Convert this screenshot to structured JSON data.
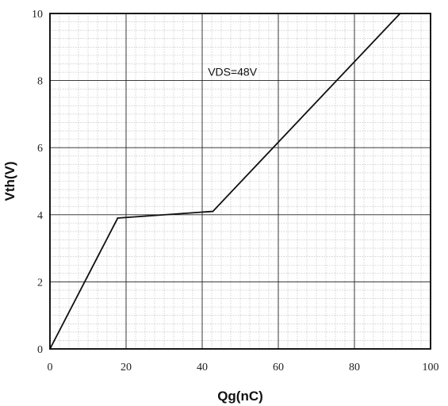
{
  "chart_data": {
    "type": "line",
    "xlabel": "Qg(nC)",
    "ylabel": "Vth(V)",
    "xlim": [
      0,
      100
    ],
    "ylim": [
      0,
      10
    ],
    "x_ticks": [
      0,
      20,
      40,
      60,
      80,
      100
    ],
    "y_ticks": [
      0,
      2,
      4,
      6,
      8,
      10
    ],
    "x_tick_labels": [
      "0",
      "20",
      "40",
      "60",
      "80",
      "100"
    ],
    "y_tick_labels": [
      "0",
      "2",
      "4",
      "6",
      "8",
      "10"
    ],
    "grid": true,
    "minor_grid": true,
    "annotations": [
      {
        "text": "VDS=48V",
        "x": 41.5,
        "y": 8.15
      }
    ],
    "series": [
      {
        "x": [
          0,
          17.8,
          42.8,
          92
        ],
        "y": [
          0,
          3.9,
          4.1,
          10
        ]
      }
    ]
  }
}
